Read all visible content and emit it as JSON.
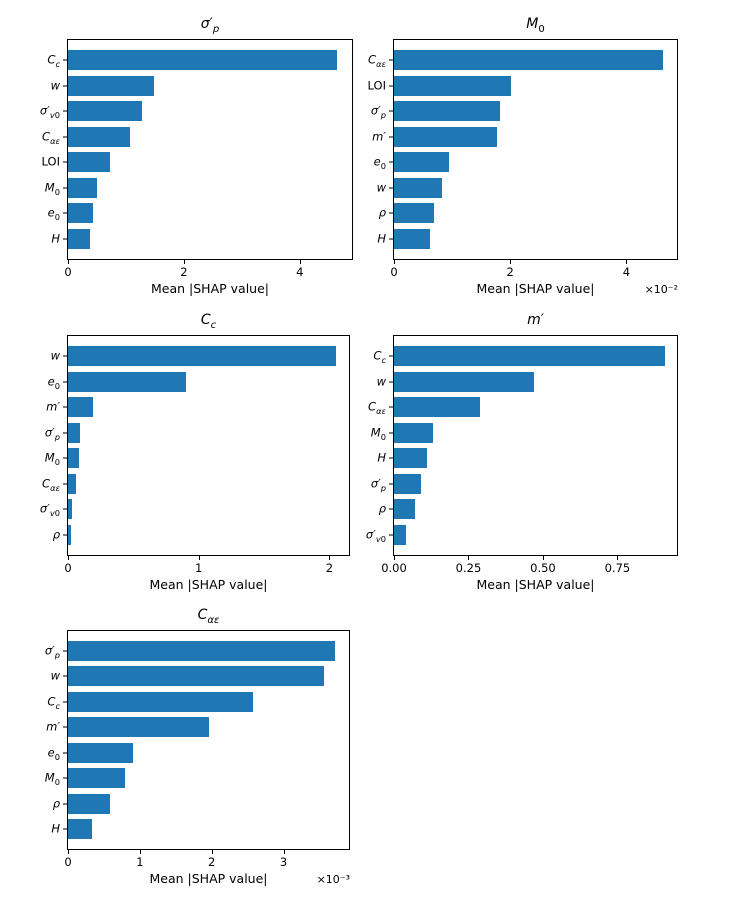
{
  "figure": {
    "background": "#ffffff",
    "bar_color": "#1f77b4",
    "spine_color": "#000000",
    "text_color": "#000000"
  },
  "chart_data": [
    {
      "type": "bar",
      "orientation": "horizontal",
      "title": "σ′_{p}",
      "xlabel": "Mean |SHAP value|",
      "categories": [
        "C_{c}",
        "w",
        "σ′_{v0}",
        "C_{αε}",
        "LOI",
        "M_{0}",
        "e_{0}",
        "H"
      ],
      "values": [
        4.64,
        1.48,
        1.27,
        1.07,
        0.72,
        0.5,
        0.43,
        0.38
      ],
      "xlim": [
        0,
        4.9
      ],
      "xtick_values": [
        0,
        2,
        4
      ],
      "xticks": [
        "0",
        "2",
        "4"
      ],
      "offset_text": "",
      "grid": false,
      "bar_height_fraction": 0.8
    },
    {
      "type": "bar",
      "orientation": "horizontal",
      "title": "M_{0}",
      "xlabel": "Mean |SHAP value|",
      "categories": [
        "C_{αε}",
        "LOI",
        "σ′_{p}",
        "m′",
        "e_{0}",
        "w",
        "ρ",
        "H"
      ],
      "values": [
        4.62,
        2.02,
        1.83,
        1.77,
        0.95,
        0.82,
        0.68,
        0.62
      ],
      "xlim": [
        0,
        4.87
      ],
      "xtick_values": [
        0,
        2,
        4
      ],
      "xticks": [
        "0",
        "2",
        "4"
      ],
      "offset_text": "×10⁻²",
      "grid": false,
      "bar_height_fraction": 0.8
    },
    {
      "type": "bar",
      "orientation": "horizontal",
      "title": "C_{c}",
      "xlabel": "Mean |SHAP value|",
      "categories": [
        "w",
        "e_{0}",
        "m′",
        "σ′_{p}",
        "M_{0}",
        "C_{αε}",
        "σ′_{v0}",
        "ρ"
      ],
      "values": [
        2.05,
        0.9,
        0.19,
        0.09,
        0.08,
        0.06,
        0.03,
        0.02
      ],
      "xlim": [
        0,
        2.15
      ],
      "xtick_values": [
        0,
        1,
        2
      ],
      "xticks": [
        "0",
        "1",
        "2"
      ],
      "offset_text": "",
      "grid": false,
      "bar_height_fraction": 0.8
    },
    {
      "type": "bar",
      "orientation": "horizontal",
      "title": "m′",
      "xlabel": "Mean |SHAP value|",
      "categories": [
        "C_{c}",
        "w",
        "C_{αε}",
        "M_{0}",
        "H",
        "σ′_{p}",
        "ρ",
        "σ′_{v0}"
      ],
      "values": [
        0.91,
        0.47,
        0.29,
        0.13,
        0.11,
        0.09,
        0.07,
        0.04
      ],
      "xlim": [
        0,
        0.95
      ],
      "xtick_values": [
        0,
        0.25,
        0.5,
        0.75
      ],
      "xticks": [
        "0.00",
        "0.25",
        "0.50",
        "0.75"
      ],
      "offset_text": "",
      "grid": false,
      "bar_height_fraction": 0.8
    },
    {
      "type": "bar",
      "orientation": "horizontal",
      "title": "C_{αε}",
      "xlabel": "Mean |SHAP value|",
      "categories": [
        "σ′_{p}",
        "w",
        "C_{c}",
        "m′",
        "e_{0}",
        "M_{0}",
        "ρ",
        "H"
      ],
      "values": [
        3.72,
        3.56,
        2.57,
        1.96,
        0.91,
        0.79,
        0.58,
        0.34
      ],
      "xlim": [
        0,
        3.91
      ],
      "xtick_values": [
        0,
        1,
        2,
        3
      ],
      "xticks": [
        "0",
        "1",
        "2",
        "3"
      ],
      "offset_text": "×10⁻³",
      "grid": false,
      "bar_height_fraction": 0.8
    }
  ]
}
